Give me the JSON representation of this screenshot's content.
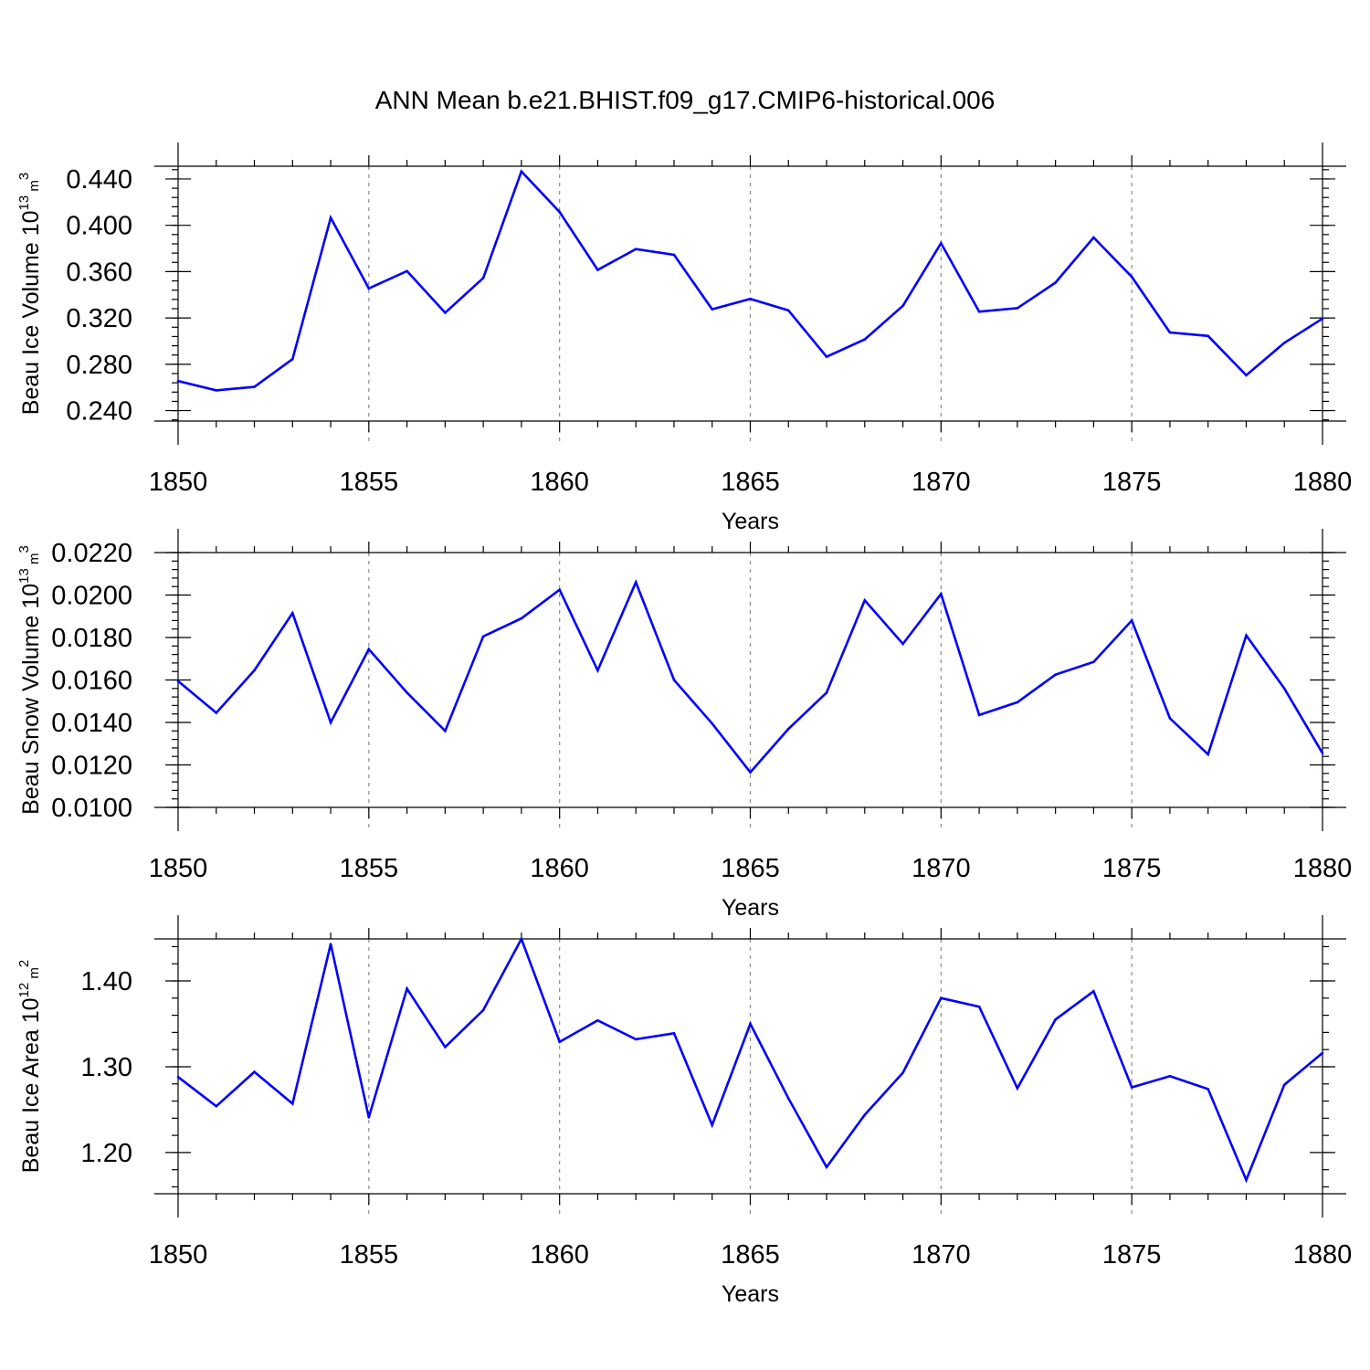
{
  "chart_data": {
    "title": "ANN Mean b.e21.BHIST.f09_g17.CMIP6-historical.006",
    "colors": {
      "series": "#0000ff",
      "grid": "#8a8a8a",
      "axis": "#000000"
    },
    "panels": [
      {
        "type": "line",
        "ylabel_main": "Beau Ice Volume 10",
        "ylabel_exp": "13",
        "ylabel_unit": " m",
        "ylabel_unit_exp": "3",
        "xlabel": "Years",
        "xlim": [
          1850,
          1880
        ],
        "ylim": [
          0.231,
          0.451
        ],
        "yticks": [
          0.24,
          0.28,
          0.32,
          0.36,
          0.4,
          0.44
        ],
        "ytick_labels": [
          "0.240",
          "0.280",
          "0.320",
          "0.360",
          "0.400",
          "0.440"
        ],
        "yminor_step": 0.008,
        "xticks": [
          1850,
          1855,
          1860,
          1865,
          1870,
          1875,
          1880
        ],
        "xtick_labels": [
          "1850",
          "1855",
          "1860",
          "1865",
          "1870",
          "1875",
          "1880"
        ],
        "grid_x": [
          1855,
          1860,
          1865,
          1870,
          1875
        ],
        "x": [
          1850,
          1851,
          1852,
          1853,
          1854,
          1855,
          1856,
          1857,
          1858,
          1859,
          1860,
          1861,
          1862,
          1863,
          1864,
          1865,
          1866,
          1867,
          1868,
          1869,
          1870,
          1871,
          1872,
          1873,
          1874,
          1875,
          1876,
          1877,
          1878,
          1879,
          1880
        ],
        "values": [
          0.2655,
          0.2575,
          0.2605,
          0.2845,
          0.4065,
          0.3455,
          0.3605,
          0.3245,
          0.3545,
          0.4465,
          0.4115,
          0.3615,
          0.3795,
          0.3745,
          0.3275,
          0.3365,
          0.3265,
          0.2865,
          0.3015,
          0.3305,
          0.3845,
          0.3255,
          0.3285,
          0.3505,
          0.3895,
          0.3555,
          0.3075,
          0.3045,
          0.2705,
          0.2985,
          0.3195
        ]
      },
      {
        "type": "line",
        "ylabel_main": "Beau Snow Volume 10",
        "ylabel_exp": "13",
        "ylabel_unit": " m",
        "ylabel_unit_exp": "3",
        "xlabel": "Years",
        "xlim": [
          1850,
          1880
        ],
        "ylim": [
          0.01,
          0.022
        ],
        "yticks": [
          0.01,
          0.012,
          0.014,
          0.016,
          0.018,
          0.02,
          0.022
        ],
        "ytick_labels": [
          "0.0100",
          "0.0120",
          "0.0140",
          "0.0160",
          "0.0180",
          "0.0200",
          "0.0220"
        ],
        "yminor_step": 0.0004,
        "xticks": [
          1850,
          1855,
          1860,
          1865,
          1870,
          1875,
          1880
        ],
        "xtick_labels": [
          "1850",
          "1855",
          "1860",
          "1865",
          "1870",
          "1875",
          "1880"
        ],
        "grid_x": [
          1855,
          1860,
          1865,
          1870,
          1875
        ],
        "x": [
          1850,
          1851,
          1852,
          1853,
          1854,
          1855,
          1856,
          1857,
          1858,
          1859,
          1860,
          1861,
          1862,
          1863,
          1864,
          1865,
          1866,
          1867,
          1868,
          1869,
          1870,
          1871,
          1872,
          1873,
          1874,
          1875,
          1876,
          1877,
          1878,
          1879,
          1880
        ],
        "values": [
          0.01595,
          0.01445,
          0.01645,
          0.01915,
          0.014,
          0.01745,
          0.0154,
          0.0136,
          0.01805,
          0.0189,
          0.02025,
          0.01645,
          0.0206,
          0.016,
          0.01395,
          0.01165,
          0.0137,
          0.0154,
          0.01975,
          0.0177,
          0.02005,
          0.01435,
          0.01495,
          0.01625,
          0.01685,
          0.0188,
          0.0142,
          0.0125,
          0.0181,
          0.0156,
          0.01255
        ]
      },
      {
        "type": "line",
        "ylabel_main": "Beau Ice Area 10",
        "ylabel_exp": "12",
        "ylabel_unit": " m",
        "ylabel_unit_exp": "2",
        "xlabel": "Years",
        "xlim": [
          1850,
          1880
        ],
        "ylim": [
          1.152,
          1.449
        ],
        "yticks": [
          1.2,
          1.3,
          1.4
        ],
        "ytick_labels": [
          "1.20",
          "1.30",
          "1.40"
        ],
        "yminor_step": 0.02,
        "xticks": [
          1850,
          1855,
          1860,
          1865,
          1870,
          1875,
          1880
        ],
        "xtick_labels": [
          "1850",
          "1855",
          "1860",
          "1865",
          "1870",
          "1875",
          "1880"
        ],
        "grid_x": [
          1855,
          1860,
          1865,
          1870,
          1875
        ],
        "x": [
          1850,
          1851,
          1852,
          1853,
          1854,
          1855,
          1856,
          1857,
          1858,
          1859,
          1860,
          1861,
          1862,
          1863,
          1864,
          1865,
          1866,
          1867,
          1868,
          1869,
          1870,
          1871,
          1872,
          1873,
          1874,
          1875,
          1876,
          1877,
          1878,
          1879,
          1880
        ],
        "values": [
          1.288,
          1.254,
          1.294,
          1.257,
          1.443,
          1.241,
          1.391,
          1.323,
          1.366,
          1.449,
          1.329,
          1.354,
          1.332,
          1.339,
          1.232,
          1.35,
          1.263,
          1.183,
          1.244,
          1.293,
          1.38,
          1.37,
          1.275,
          1.355,
          1.388,
          1.276,
          1.289,
          1.274,
          1.168,
          1.279,
          1.316
        ]
      }
    ]
  }
}
